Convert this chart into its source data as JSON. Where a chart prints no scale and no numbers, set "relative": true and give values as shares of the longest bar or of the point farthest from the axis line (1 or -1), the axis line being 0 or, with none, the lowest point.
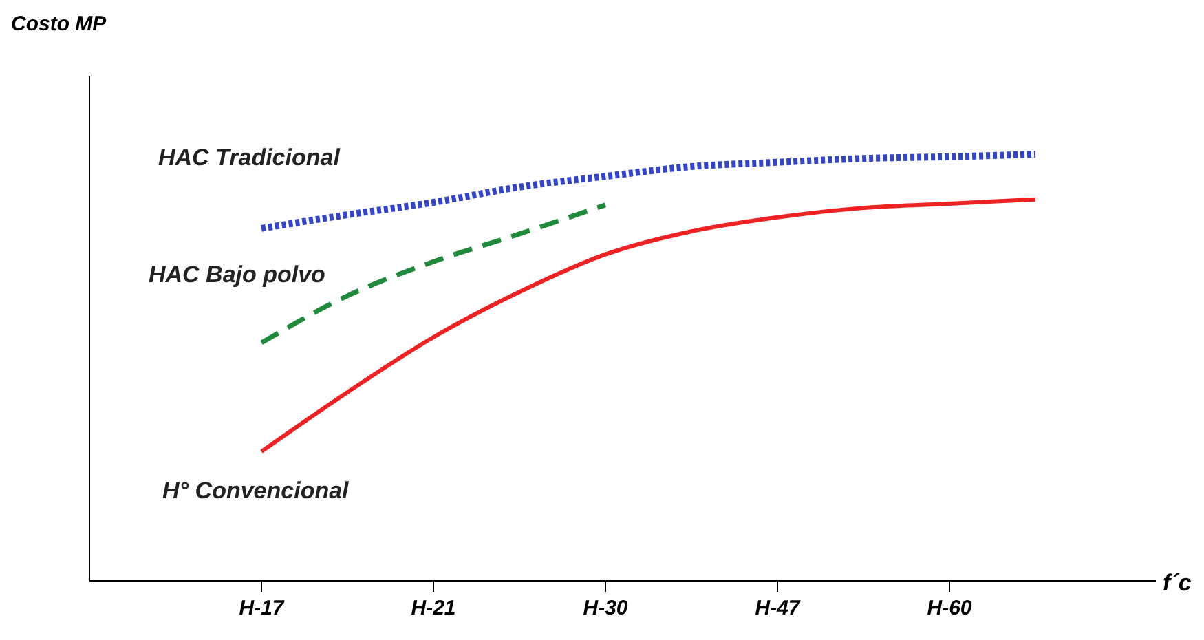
{
  "chart_data": {
    "type": "line",
    "relative": true,
    "annotations": [
      "Costo MP"
    ],
    "xlabel": "f´c",
    "categories": [
      "H-17",
      null,
      "H-21",
      null,
      "H-30",
      null,
      "H-47",
      null,
      "H-60",
      null
    ],
    "grid": false,
    "marker": "none",
    "series": [
      {
        "name": "HAC Tradicional",
        "color": "#3344cc",
        "line_style": "dotted",
        "values": [
          0.826,
          0.858,
          0.887,
          0.923,
          0.948,
          0.971,
          0.981,
          0.99,
          0.994,
          1
        ]
      },
      {
        "name": "HAC Bajo polvo",
        "color": "#1e8a3a",
        "line_style": "dashed",
        "values": [
          0.558,
          0.668,
          0.748,
          0.813,
          0.881,
          null,
          null,
          null,
          null,
          null
        ]
      },
      {
        "name": "H° Convencional",
        "color": "#ee2222",
        "line_style": "solid",
        "values": [
          0.303,
          0.442,
          0.571,
          0.677,
          0.765,
          0.819,
          0.852,
          0.874,
          0.884,
          0.894
        ]
      }
    ]
  }
}
